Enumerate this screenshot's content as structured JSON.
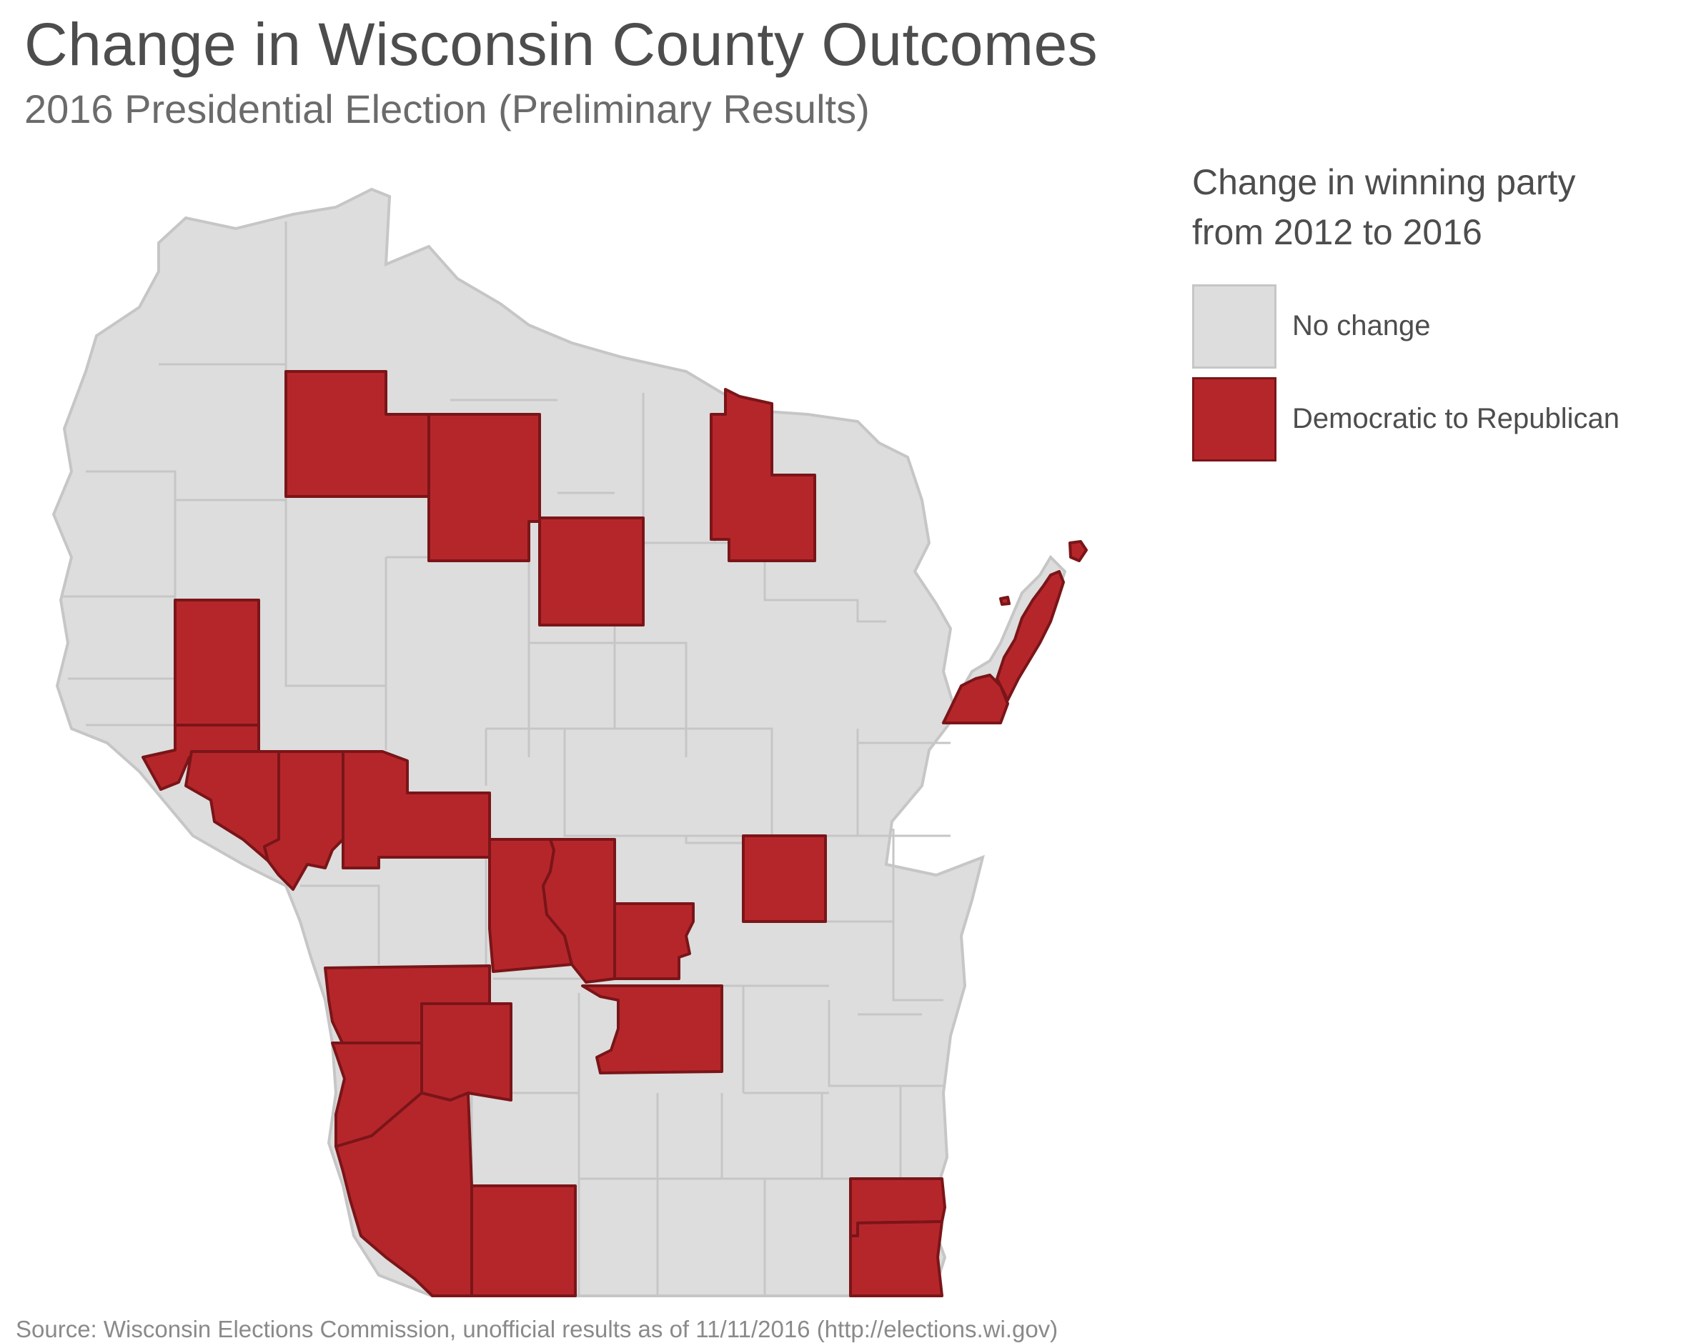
{
  "title": "Change in Wisconsin County Outcomes",
  "subtitle": "2016 Presidential Election (Preliminary Results)",
  "legend": {
    "title": "Change in winning party from 2012 to 2016",
    "items": [
      {
        "label": "No change",
        "color": "#dddddd"
      },
      {
        "label": "Democratic to Republican",
        "color": "#b5262b"
      }
    ]
  },
  "source": "Source: Wisconsin Elections Commission, unofficial results as of 11/11/2016 (http://elections.wi.gov)",
  "colors": {
    "no_change": "#dddddd",
    "dem_to_rep": "#b5262b",
    "county_border": "#c6c6c6",
    "flip_border": "#7a1518"
  }
}
